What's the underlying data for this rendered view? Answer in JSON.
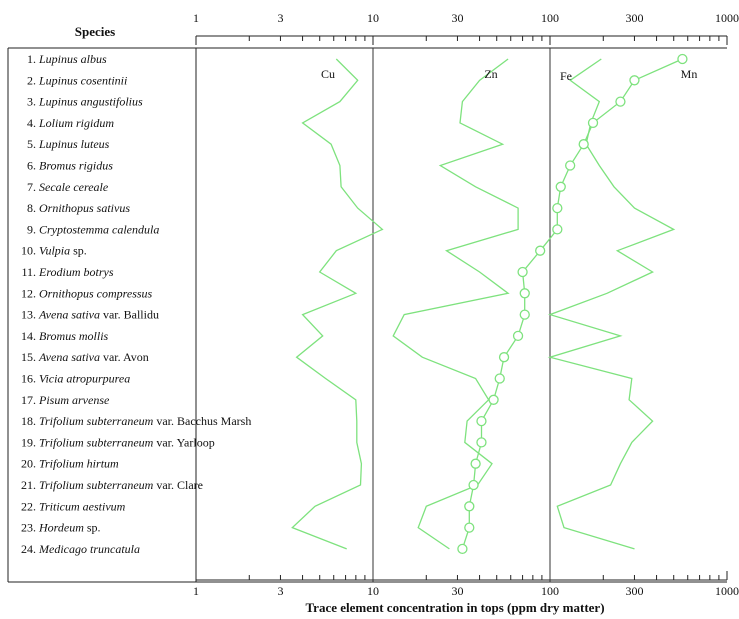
{
  "chart_data": {
    "type": "line",
    "title": "",
    "species_header": "Species",
    "xlabel": "Trace element concentration in tops (ppm dry matter)",
    "x_scale": "log",
    "xlim": [
      1,
      1000
    ],
    "x_tick_labels": [
      "1",
      "3",
      "10",
      "30",
      "100",
      "300",
      "1000"
    ],
    "x_tick_values": [
      1,
      3,
      10,
      30,
      100,
      300,
      1000
    ],
    "reference_lines": [
      10,
      100
    ],
    "line_color": "#7ee27e",
    "marker": {
      "series": "Mn",
      "shape": "open-circle"
    },
    "species": [
      {
        "num": "1.",
        "name": "Lupinus albus",
        "suffix": ""
      },
      {
        "num": "2.",
        "name": "Lupinus cosentinii",
        "suffix": ""
      },
      {
        "num": "3.",
        "name": "Lupinus angustifolius",
        "suffix": ""
      },
      {
        "num": "4.",
        "name": "Lolium rigidum",
        "suffix": ""
      },
      {
        "num": "5.",
        "name": "Lupinus luteus",
        "suffix": ""
      },
      {
        "num": "6.",
        "name": "Bromus rigidus",
        "suffix": ""
      },
      {
        "num": "7.",
        "name": "Secale cereale",
        "suffix": ""
      },
      {
        "num": "8.",
        "name": "Ornithopus sativus",
        "suffix": ""
      },
      {
        "num": "9.",
        "name": "Cryptostemma calendula",
        "suffix": ""
      },
      {
        "num": "10.",
        "name": "Vulpia",
        "suffix": " sp."
      },
      {
        "num": "11.",
        "name": "Erodium botrys",
        "suffix": ""
      },
      {
        "num": "12.",
        "name": "Ornithopus compressus",
        "suffix": ""
      },
      {
        "num": "13.",
        "name": "Avena sativa",
        "suffix": " var. Ballidu"
      },
      {
        "num": "14.",
        "name": "Bromus mollis",
        "suffix": ""
      },
      {
        "num": "15.",
        "name": "Avena sativa",
        "suffix": " var. Avon"
      },
      {
        "num": "16.",
        "name": "Vicia atropurpurea",
        "suffix": ""
      },
      {
        "num": "17.",
        "name": "Pisum arvense",
        "suffix": ""
      },
      {
        "num": "18.",
        "name": "Trifolium subterraneum",
        "suffix": " var. Bacchus Marsh"
      },
      {
        "num": "19.",
        "name": "Trifolium subterraneum",
        "suffix": " var. Yarloop"
      },
      {
        "num": "20.",
        "name": "Trifolium hirtum",
        "suffix": ""
      },
      {
        "num": "21.",
        "name": "Trifolium subterraneum",
        "suffix": " var. Clare"
      },
      {
        "num": "22.",
        "name": "Triticum aestivum",
        "suffix": ""
      },
      {
        "num": "23.",
        "name": "Hordeum",
        "suffix": " sp."
      },
      {
        "num": "24.",
        "name": "Medicago truncatula",
        "suffix": ""
      }
    ],
    "series": [
      {
        "name": "Cu",
        "values": [
          6.2,
          8.2,
          6.5,
          4.0,
          5.8,
          6.5,
          6.6,
          8.2,
          11.3,
          6.2,
          5.0,
          8.0,
          4.0,
          5.2,
          3.7,
          5.4,
          8.0,
          8.1,
          8.1,
          8.6,
          8.5,
          4.7,
          3.5,
          7.1
        ]
      },
      {
        "name": "Zn",
        "values": [
          58,
          40,
          32,
          31,
          54,
          24,
          38,
          66,
          66,
          26,
          40,
          58,
          15,
          13,
          19,
          38,
          45,
          34,
          33,
          47,
          39,
          20,
          18,
          27
        ]
      },
      {
        "name": "Fe",
        "values": [
          195,
          130,
          190,
          170,
          160,
          190,
          230,
          300,
          500,
          240,
          380,
          210,
          100,
          250,
          100,
          290,
          280,
          380,
          290,
          250,
          220,
          110,
          120,
          300
        ]
      },
      {
        "name": "Mn",
        "values": [
          560,
          300,
          250,
          175,
          155,
          130,
          115,
          110,
          110,
          88,
          70,
          72,
          72,
          66,
          55,
          52,
          48,
          41,
          41,
          38,
          37,
          35,
          35,
          32
        ]
      }
    ],
    "series_labels": [
      "Cu",
      "Zn",
      "Fe",
      "Mn"
    ]
  }
}
